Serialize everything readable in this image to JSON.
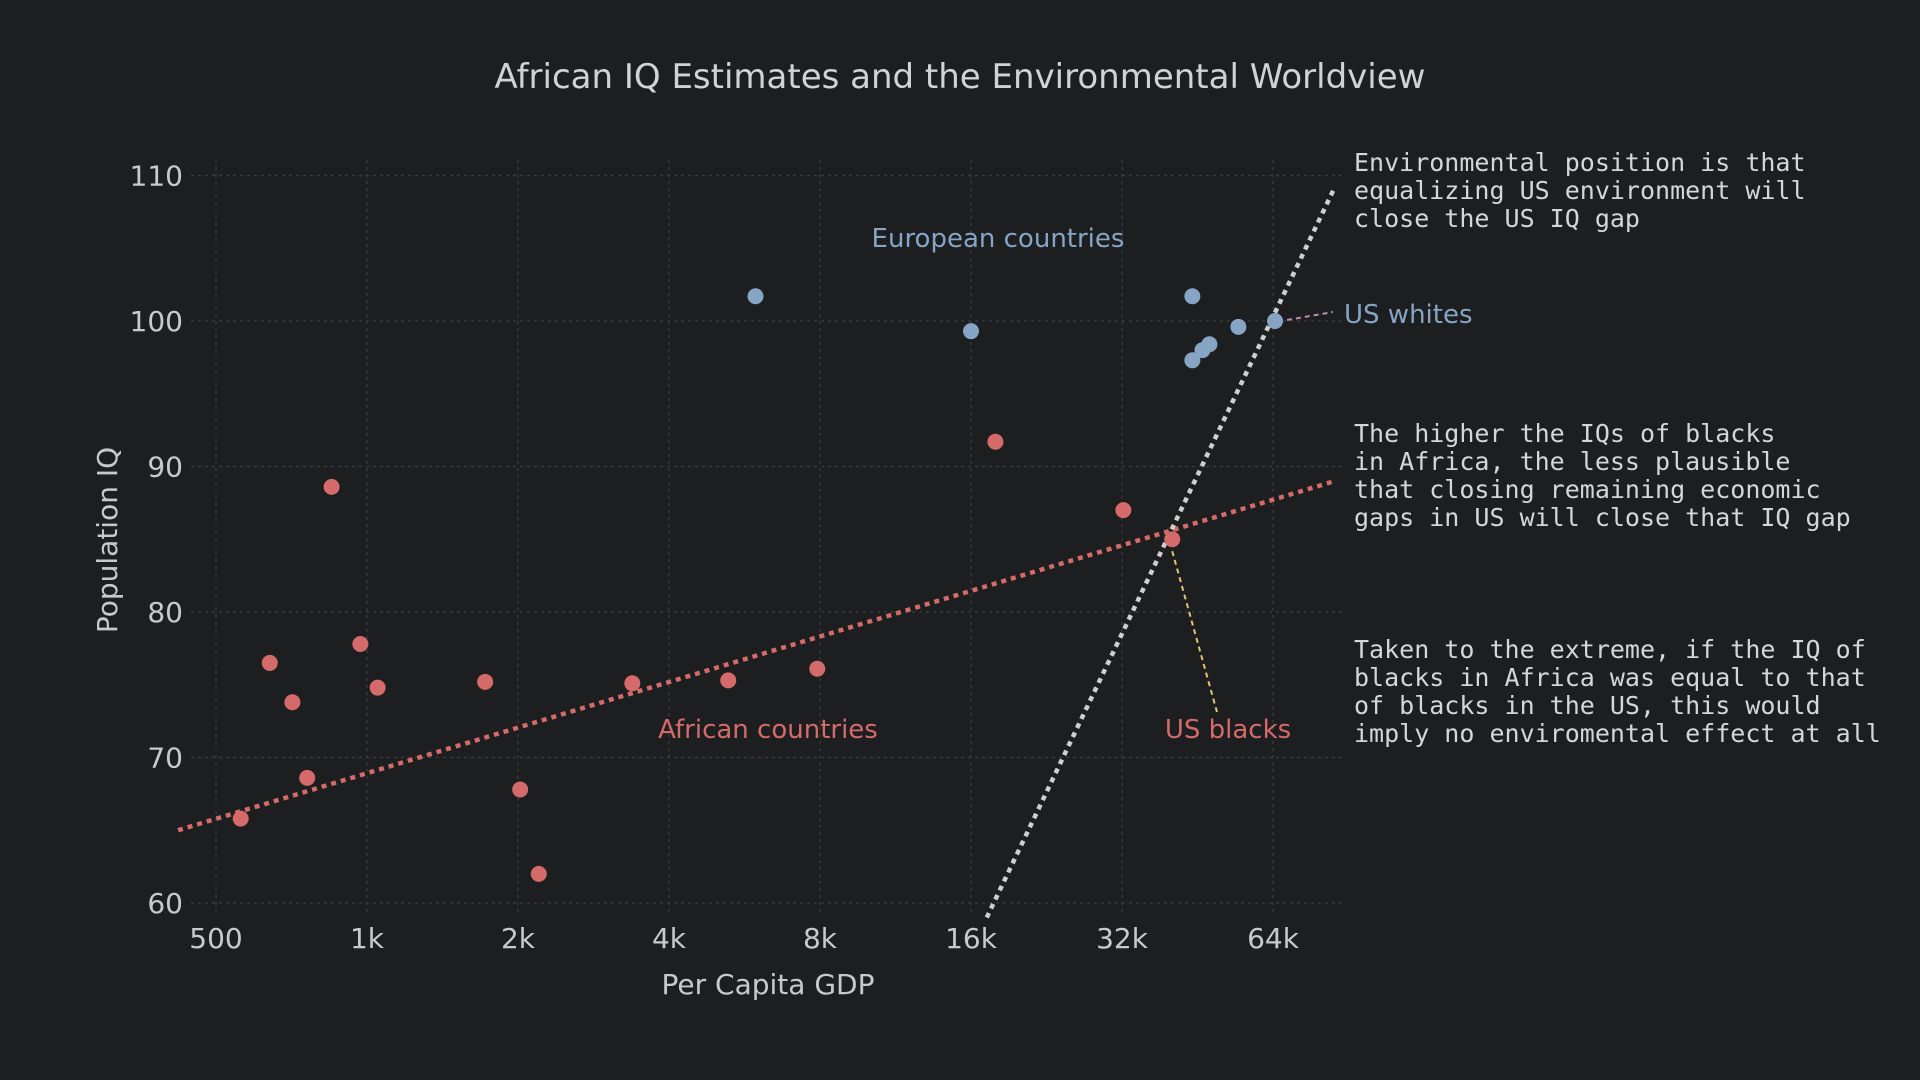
{
  "colors": {
    "background": "#1d1e20",
    "african": "#d46a6a",
    "european": "#86a5c4",
    "environmental_line": "#cfcfcf",
    "us_whites_connector": "#c08bb3",
    "us_blacks_connector": "#e6c46a"
  },
  "chart_data": {
    "type": "scatter",
    "title": "African IQ Estimates and the Environmental Worldview",
    "xlabel": "Per Capita GDP",
    "ylabel": "Population IQ",
    "xscale": "log2",
    "xlim": [
      450,
      85000
    ],
    "ylim": [
      59,
      111
    ],
    "x_ticks": [
      {
        "value": 500,
        "label": "500"
      },
      {
        "value": 1000,
        "label": "1k"
      },
      {
        "value": 2000,
        "label": "2k"
      },
      {
        "value": 4000,
        "label": "4k"
      },
      {
        "value": 8000,
        "label": "8k"
      },
      {
        "value": 16000,
        "label": "16k"
      },
      {
        "value": 32000,
        "label": "32k"
      },
      {
        "value": 64000,
        "label": "64k"
      }
    ],
    "y_ticks": [
      {
        "value": 60,
        "label": "60"
      },
      {
        "value": 70,
        "label": "70"
      },
      {
        "value": 80,
        "label": "80"
      },
      {
        "value": 90,
        "label": "90"
      },
      {
        "value": 100,
        "label": "100"
      },
      {
        "value": 110,
        "label": "110"
      }
    ],
    "grid": true,
    "series": [
      {
        "name": "African countries",
        "color": "#d46a6a",
        "points": [
          {
            "x": 560,
            "y": 65.8
          },
          {
            "x": 640,
            "y": 76.5
          },
          {
            "x": 710,
            "y": 73.8
          },
          {
            "x": 760,
            "y": 68.6
          },
          {
            "x": 850,
            "y": 88.6
          },
          {
            "x": 970,
            "y": 77.8
          },
          {
            "x": 1050,
            "y": 74.8
          },
          {
            "x": 1720,
            "y": 75.2
          },
          {
            "x": 2020,
            "y": 67.8
          },
          {
            "x": 2200,
            "y": 62.0
          },
          {
            "x": 3380,
            "y": 75.1
          },
          {
            "x": 5250,
            "y": 75.3
          },
          {
            "x": 7900,
            "y": 76.1
          },
          {
            "x": 17900,
            "y": 91.7
          },
          {
            "x": 32200,
            "y": 87.0
          },
          {
            "x": 40300,
            "y": 85.0
          }
        ]
      },
      {
        "name": "European countries",
        "color": "#86a5c4",
        "points": [
          {
            "x": 5950,
            "y": 101.7
          },
          {
            "x": 16000,
            "y": 99.3
          },
          {
            "x": 44200,
            "y": 101.7
          },
          {
            "x": 44200,
            "y": 97.3
          },
          {
            "x": 46300,
            "y": 98.0
          },
          {
            "x": 47800,
            "y": 98.4
          },
          {
            "x": 54600,
            "y": 99.6
          },
          {
            "x": 64600,
            "y": 100.0
          }
        ]
      }
    ],
    "lines": [
      {
        "name": "african-trend",
        "style": "dotted",
        "color": "#d46a6a",
        "points": [
          {
            "x": 420,
            "y": 65.0
          },
          {
            "x": 85000,
            "y": 89.0
          }
        ]
      },
      {
        "name": "environmental-line",
        "style": "dotted",
        "color": "#cfcfcf",
        "points": [
          {
            "x": 17200,
            "y": 59.0
          },
          {
            "x": 85000,
            "y": 109.2
          }
        ]
      }
    ],
    "labels": [
      {
        "text": "European countries",
        "color": "#86a5c4"
      },
      {
        "text": "US whites",
        "color": "#86a5c4"
      },
      {
        "text": "African countries",
        "color": "#d46a6a"
      },
      {
        "text": "US blacks",
        "color": "#d46a6a"
      }
    ],
    "annotations": [
      {
        "lines": [
          "Environmental position is that",
          "equalizing US environment will",
          "close the US IQ gap"
        ]
      },
      {
        "lines": [
          "The higher the IQs of blacks",
          "in Africa, the less plausible",
          "that closing remaining economic",
          "gaps in US will close that IQ gap"
        ]
      },
      {
        "lines": [
          "Taken to the extreme, if the IQ of",
          "blacks in Africa was equal to that",
          "of blacks in the US, this would",
          "imply no enviromental effect at all"
        ]
      }
    ]
  }
}
